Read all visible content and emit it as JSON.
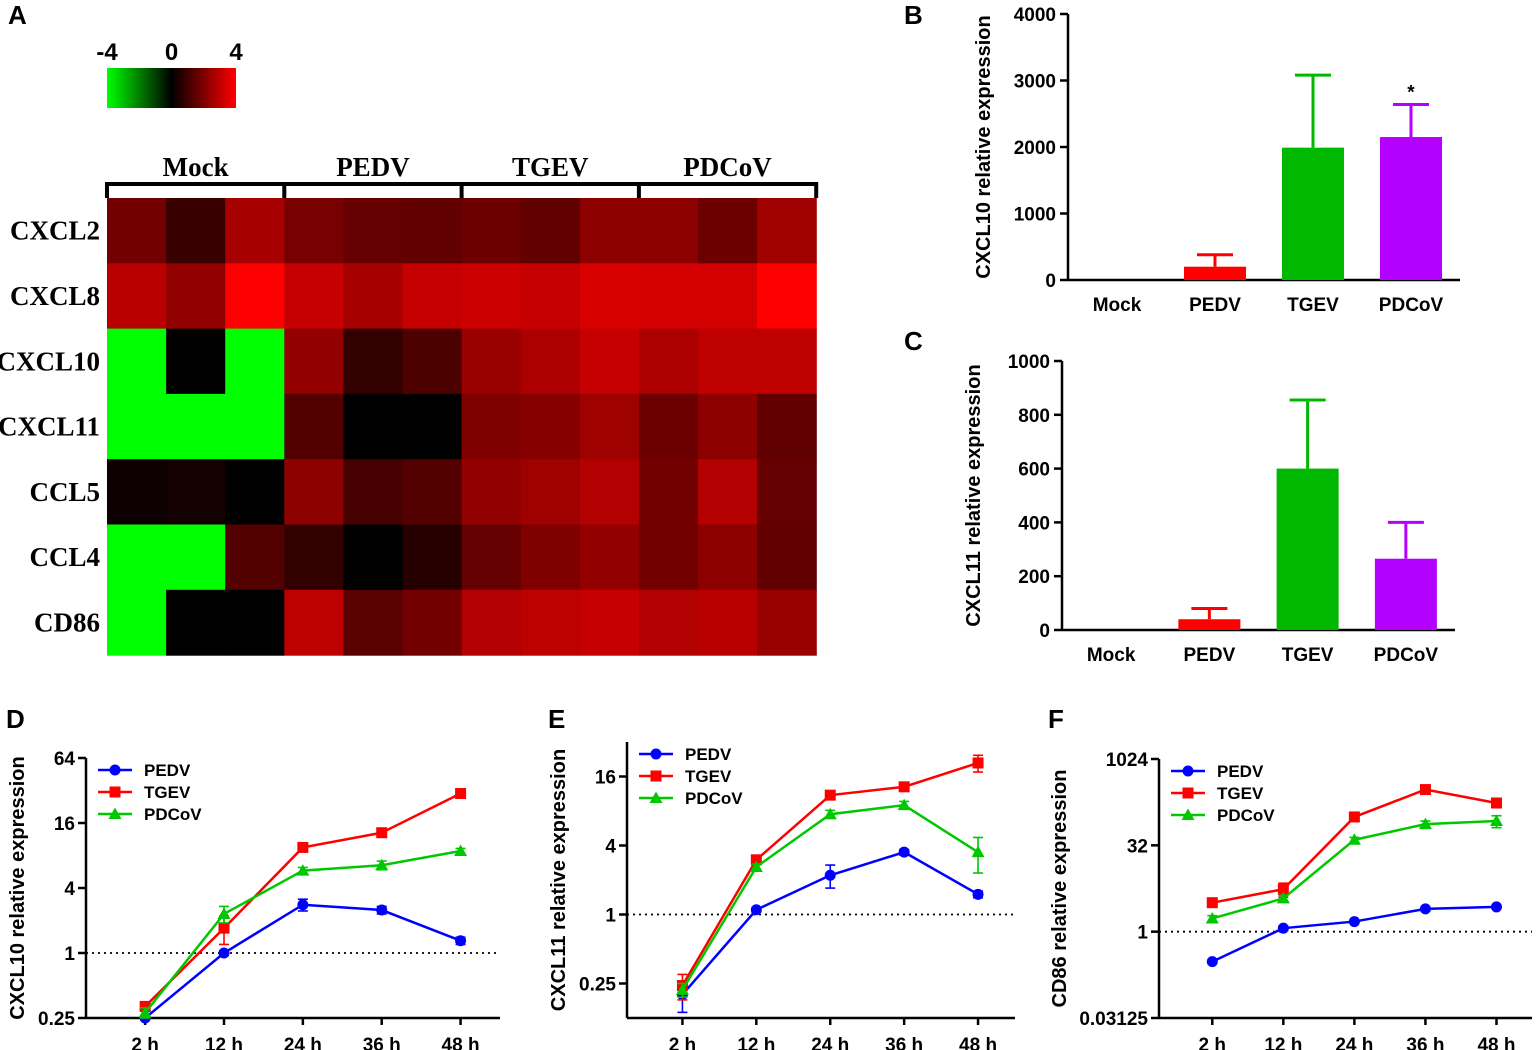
{
  "panels": {
    "A": "A",
    "B": "B",
    "C": "C",
    "D": "D",
    "E": "E",
    "F": "F"
  },
  "chart_data": [
    {
      "id": "A",
      "type": "heatmap",
      "colorbar": {
        "min": -4,
        "mid": 0,
        "max": 4,
        "labels": [
          "-4",
          "0",
          "4"
        ],
        "low_color": "#00ff00",
        "mid_color": "#000000",
        "high_color": "#ff0000"
      },
      "groups": [
        "Mock",
        "PEDV",
        "TGEV",
        "PDCoV"
      ],
      "rows": [
        "CXCL2",
        "CXCL8",
        "CXCL10",
        "CXCL11",
        "CCL5",
        "CCL4",
        "CD86"
      ],
      "values": [
        [
          1.8,
          0.9,
          2.6,
          1.9,
          1.6,
          1.5,
          1.7,
          1.5,
          2.2,
          2.2,
          1.7,
          2.5
        ],
        [
          2.9,
          2.3,
          4.0,
          3.1,
          2.6,
          3.1,
          3.2,
          3.1,
          3.4,
          3.3,
          3.3,
          4.0
        ],
        [
          -4.0,
          0.0,
          -4.0,
          2.3,
          0.8,
          1.2,
          2.4,
          2.7,
          3.1,
          2.7,
          3.0,
          3.0
        ],
        [
          -4.0,
          -4.0,
          -4.0,
          1.3,
          0.0,
          0.0,
          2.0,
          2.1,
          2.5,
          1.7,
          2.2,
          1.5
        ],
        [
          0.2,
          0.3,
          0.0,
          2.2,
          1.1,
          1.3,
          2.3,
          2.5,
          2.8,
          1.8,
          2.8,
          1.6
        ],
        [
          -4.0,
          -4.0,
          1.3,
          0.8,
          0.0,
          0.6,
          1.6,
          2.0,
          2.3,
          1.8,
          2.2,
          1.5
        ],
        [
          -4.0,
          0.0,
          0.0,
          3.0,
          1.4,
          1.8,
          2.8,
          3.0,
          3.1,
          2.8,
          2.9,
          2.4
        ]
      ]
    },
    {
      "id": "B",
      "type": "bar",
      "categories": [
        "Mock",
        "PEDV",
        "TGEV",
        "PDCoV"
      ],
      "values": [
        0,
        200,
        1990,
        2150
      ],
      "errors": [
        0,
        180,
        1090,
        490
      ],
      "colors": [
        "#000000",
        "#ff0000",
        "#00b800",
        "#b400ff"
      ],
      "annotations": [
        "",
        "",
        "",
        "*"
      ],
      "ylabel": "CXCL10 relative expression",
      "ylim": [
        0,
        4000
      ],
      "yticks": [
        0,
        1000,
        2000,
        3000,
        4000
      ]
    },
    {
      "id": "C",
      "type": "bar",
      "categories": [
        "Mock",
        "PEDV",
        "TGEV",
        "PDCoV"
      ],
      "values": [
        0,
        40,
        600,
        265
      ],
      "errors": [
        0,
        40,
        255,
        135
      ],
      "colors": [
        "#000000",
        "#ff0000",
        "#00b800",
        "#b400ff"
      ],
      "annotations": [
        "",
        "",
        "",
        ""
      ],
      "ylabel": "CXCL11 relative expression",
      "ylim": [
        0,
        1000
      ],
      "yticks": [
        0,
        200,
        400,
        600,
        800,
        1000
      ]
    },
    {
      "id": "D",
      "type": "line",
      "log2": true,
      "categories": [
        "2 h",
        "12 h",
        "24 h",
        "36 h",
        "48 h"
      ],
      "ylabel": "CXCL10 relative expression",
      "ylim": [
        0.25,
        64
      ],
      "yticks": [
        0.25,
        1,
        4,
        16,
        64
      ],
      "ytick_labels": [
        "0.25",
        "1",
        "4",
        "16",
        "64"
      ],
      "baseline": 1,
      "series": [
        {
          "name": "PEDV",
          "color": "#0000ff",
          "marker": "circle",
          "values": [
            0.25,
            1.0,
            2.8,
            2.5,
            1.3
          ],
          "errors": [
            0.01,
            0.05,
            0.35,
            0.2,
            0.1
          ]
        },
        {
          "name": "TGEV",
          "color": "#ff0000",
          "marker": "square",
          "values": [
            0.32,
            1.7,
            9.5,
            13,
            30
          ],
          "errors": [
            0.03,
            0.5,
            0.6,
            0.8,
            1.5
          ]
        },
        {
          "name": "PDCoV",
          "color": "#00c800",
          "marker": "triangle",
          "values": [
            0.28,
            2.3,
            5.8,
            6.5,
            8.8
          ],
          "errors": [
            0.03,
            0.4,
            0.4,
            0.6,
            0.5
          ]
        }
      ]
    },
    {
      "id": "E",
      "type": "line",
      "log2": true,
      "categories": [
        "2 h",
        "12 h",
        "24 h",
        "36 h",
        "48 h"
      ],
      "ylabel": "CXCL11 relative expression",
      "ylim": [
        0.125,
        32
      ],
      "yticks": [
        0.25,
        1,
        4,
        16
      ],
      "ytick_labels": [
        "0.25",
        "1",
        "4",
        "16"
      ],
      "baseline": 1,
      "series": [
        {
          "name": "PEDV",
          "color": "#0000ff",
          "marker": "circle",
          "values": [
            0.2,
            1.1,
            2.2,
            3.5,
            1.5
          ],
          "errors": [
            0.06,
            0.05,
            0.5,
            0.2,
            0.1
          ]
        },
        {
          "name": "TGEV",
          "color": "#ff0000",
          "marker": "square",
          "values": [
            0.24,
            3.0,
            11,
            13,
            21
          ],
          "errors": [
            0.06,
            0.2,
            0.8,
            0.9,
            3.5
          ]
        },
        {
          "name": "PDCoV",
          "color": "#00c800",
          "marker": "triangle",
          "values": [
            0.22,
            2.6,
            7.5,
            9.0,
            3.5
          ],
          "errors": [
            0.03,
            0.15,
            0.6,
            0.7,
            1.2
          ]
        }
      ]
    },
    {
      "id": "F",
      "type": "line",
      "log2": true,
      "categories": [
        "2 h",
        "12 h",
        "24 h",
        "36 h",
        "48 h"
      ],
      "ylabel": "CD86 relative expression",
      "ylim": [
        0.03125,
        1024
      ],
      "yticks": [
        0.03125,
        1,
        32,
        1024
      ],
      "ytick_labels": [
        "0.03125",
        "1",
        "32",
        "1024"
      ],
      "baseline": 1,
      "series": [
        {
          "name": "PEDV",
          "color": "#0000ff",
          "marker": "circle",
          "values": [
            0.3,
            1.15,
            1.5,
            2.5,
            2.7
          ],
          "errors": [
            0.02,
            0.1,
            0.1,
            0.2,
            0.2
          ]
        },
        {
          "name": "TGEV",
          "color": "#ff0000",
          "marker": "square",
          "values": [
            3.2,
            5.5,
            100,
            300,
            175
          ],
          "errors": [
            0.3,
            1.5,
            8,
            25,
            15
          ]
        },
        {
          "name": "PDCoV",
          "color": "#00c800",
          "marker": "triangle",
          "values": [
            1.7,
            3.8,
            40,
            75,
            85
          ],
          "errors": [
            0.2,
            0.5,
            4,
            10,
            20
          ]
        }
      ]
    }
  ]
}
